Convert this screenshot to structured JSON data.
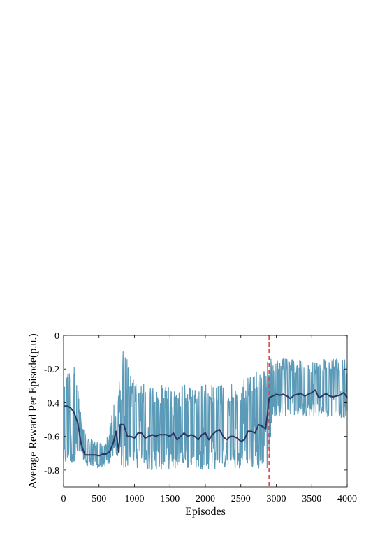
{
  "chart_data": {
    "type": "line",
    "title": "",
    "xlabel": "Episodes",
    "ylabel": "Average Reward Per Episode(p.u.)",
    "xlim": [
      0,
      4000
    ],
    "ylim": [
      -0.9,
      0
    ],
    "x_ticks": [
      0,
      500,
      1000,
      1500,
      2000,
      2500,
      3000,
      3500,
      4000
    ],
    "y_ticks": [
      -0.8,
      -0.6,
      -0.4,
      -0.2,
      0
    ],
    "x_tick_labels": [
      "0",
      "500",
      "1000",
      "1500",
      "2000",
      "2500",
      "3000",
      "3500",
      "4000"
    ],
    "y_tick_labels": [
      "-0.8",
      "-0.6",
      "-0.4",
      "-0.2",
      "0"
    ],
    "grid": false,
    "legend": "none",
    "colors": {
      "raw": "#5b9bb8",
      "smoothed": "#2b3560",
      "marker": "#e8474c"
    },
    "vertical_marker_x": 2900,
    "raw_band": [
      {
        "x": 0,
        "low": -0.78,
        "high": -0.17
      },
      {
        "x": 100,
        "low": -0.78,
        "high": -0.18
      },
      {
        "x": 150,
        "low": -0.75,
        "high": -0.17
      },
      {
        "x": 200,
        "low": -0.72,
        "high": -0.25
      },
      {
        "x": 250,
        "low": -0.74,
        "high": -0.45
      },
      {
        "x": 300,
        "low": -0.78,
        "high": -0.58
      },
      {
        "x": 400,
        "low": -0.79,
        "high": -0.62
      },
      {
        "x": 500,
        "low": -0.79,
        "high": -0.63
      },
      {
        "x": 600,
        "low": -0.78,
        "high": -0.62
      },
      {
        "x": 650,
        "low": -0.77,
        "high": -0.55
      },
      {
        "x": 700,
        "low": -0.72,
        "high": -0.42
      },
      {
        "x": 720,
        "low": -0.7,
        "high": -0.39
      },
      {
        "x": 750,
        "low": -0.74,
        "high": -0.55
      },
      {
        "x": 780,
        "low": -0.78,
        "high": -0.3
      },
      {
        "x": 830,
        "low": -0.8,
        "high": -0.06
      },
      {
        "x": 880,
        "low": -0.79,
        "high": -0.1
      },
      {
        "x": 950,
        "low": -0.78,
        "high": -0.23
      },
      {
        "x": 1000,
        "low": -0.79,
        "high": -0.27
      },
      {
        "x": 1200,
        "low": -0.8,
        "high": -0.3
      },
      {
        "x": 1500,
        "low": -0.8,
        "high": -0.29
      },
      {
        "x": 1800,
        "low": -0.79,
        "high": -0.29
      },
      {
        "x": 2000,
        "low": -0.8,
        "high": -0.29
      },
      {
        "x": 2300,
        "low": -0.79,
        "high": -0.29
      },
      {
        "x": 2500,
        "low": -0.8,
        "high": -0.28
      },
      {
        "x": 2650,
        "low": -0.79,
        "high": -0.22
      },
      {
        "x": 2800,
        "low": -0.81,
        "high": -0.18
      },
      {
        "x": 2890,
        "low": -0.8,
        "high": -0.14
      },
      {
        "x": 2950,
        "low": -0.48,
        "high": -0.13
      },
      {
        "x": 3200,
        "low": -0.48,
        "high": -0.14
      },
      {
        "x": 3500,
        "low": -0.48,
        "high": -0.14
      },
      {
        "x": 3800,
        "low": -0.49,
        "high": -0.14
      },
      {
        "x": 4000,
        "low": -0.49,
        "high": -0.14
      }
    ],
    "series": [
      {
        "x": [
          0,
          50,
          100,
          150,
          200,
          250,
          300,
          350,
          400,
          450,
          500,
          550,
          600,
          650,
          700,
          740,
          780,
          800,
          850,
          900,
          950,
          1000,
          1050,
          1100,
          1150,
          1200,
          1250,
          1300,
          1350,
          1400,
          1450,
          1500,
          1550,
          1600,
          1650,
          1700,
          1750,
          1800,
          1850,
          1900,
          1950,
          2000,
          2050,
          2100,
          2150,
          2200,
          2250,
          2300,
          2350,
          2400,
          2450,
          2500,
          2550,
          2600,
          2650,
          2700,
          2750,
          2800,
          2850,
          2900,
          2950,
          3000,
          3050,
          3100,
          3150,
          3200,
          3250,
          3300,
          3350,
          3400,
          3450,
          3500,
          3550,
          3600,
          3650,
          3700,
          3750,
          3800,
          3850,
          3900,
          3950,
          4000
        ],
        "values": [
          -0.42,
          -0.42,
          -0.43,
          -0.46,
          -0.52,
          -0.65,
          -0.71,
          -0.71,
          -0.71,
          -0.71,
          -0.715,
          -0.705,
          -0.705,
          -0.69,
          -0.64,
          -0.57,
          -0.695,
          -0.53,
          -0.53,
          -0.6,
          -0.6,
          -0.61,
          -0.58,
          -0.58,
          -0.61,
          -0.6,
          -0.59,
          -0.6,
          -0.59,
          -0.59,
          -0.59,
          -0.6,
          -0.58,
          -0.62,
          -0.6,
          -0.58,
          -0.6,
          -0.59,
          -0.6,
          -0.62,
          -0.59,
          -0.58,
          -0.62,
          -0.59,
          -0.57,
          -0.56,
          -0.6,
          -0.62,
          -0.6,
          -0.6,
          -0.61,
          -0.63,
          -0.62,
          -0.57,
          -0.57,
          -0.58,
          -0.53,
          -0.54,
          -0.555,
          -0.37,
          -0.36,
          -0.35,
          -0.355,
          -0.35,
          -0.36,
          -0.375,
          -0.355,
          -0.35,
          -0.345,
          -0.36,
          -0.35,
          -0.34,
          -0.325,
          -0.37,
          -0.36,
          -0.345,
          -0.36,
          -0.365,
          -0.36,
          -0.355,
          -0.34,
          -0.37
        ]
      }
    ]
  }
}
